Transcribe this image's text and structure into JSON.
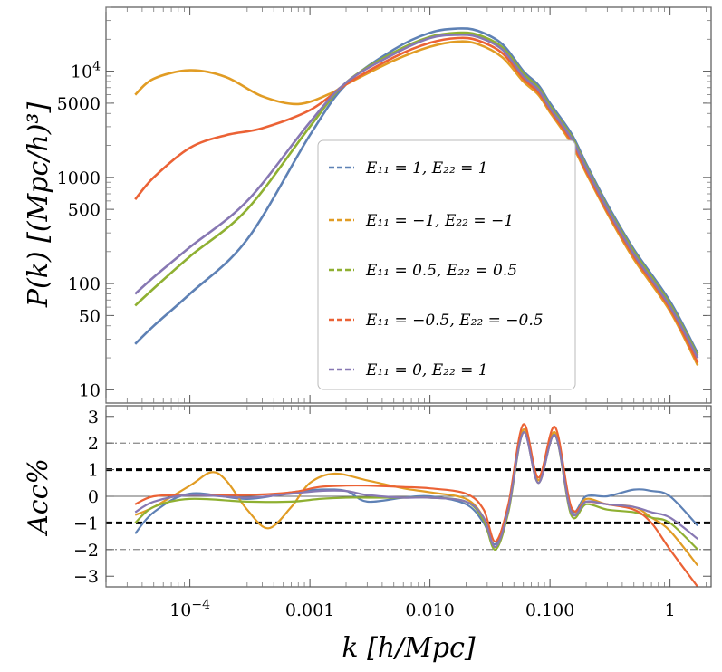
{
  "chart_data": [
    {
      "type": "line",
      "panel": "top",
      "title": "",
      "xlabel": "",
      "ylabel": "P(k) [(Mpc/h)³]",
      "xscale": "log",
      "yscale": "log",
      "xlim": [
        2e-05,
        2.2
      ],
      "ylim": [
        7.5,
        40000
      ],
      "yticks": [
        {
          "value": 10000,
          "base": "10",
          "exp": "4"
        },
        {
          "value": 5000,
          "label": "5000"
        },
        {
          "value": 1000,
          "label": "1000"
        },
        {
          "value": 500,
          "label": "500"
        },
        {
          "value": 100,
          "label": "100"
        },
        {
          "value": 50,
          "label": "50"
        },
        {
          "value": 10,
          "label": "10"
        }
      ],
      "legend_position": "center",
      "series": [
        {
          "name": "E₁₁ = 1,    E₂₂ = 1",
          "color": "#5e81b5",
          "x": [
            3.5e-05,
            5e-05,
            0.0001,
            0.0003,
            0.001,
            0.002,
            0.005,
            0.01,
            0.017,
            0.025,
            0.04,
            0.06,
            0.08,
            0.1,
            0.15,
            0.2,
            0.3,
            0.5,
            1.0,
            1.7
          ],
          "y": [
            27,
            40,
            80,
            260,
            2500,
            7500,
            16000,
            23000,
            25200,
            24000,
            18000,
            10000,
            7400,
            5000,
            2600,
            1350,
            560,
            210,
            68,
            22
          ]
        },
        {
          "name": "E₁₁ = −1,    E₂₂ = −1",
          "color": "#e19c24",
          "x": [
            3.5e-05,
            5e-05,
            0.0001,
            0.0002,
            0.0004,
            0.0008,
            0.0015,
            0.002,
            0.005,
            0.01,
            0.017,
            0.025,
            0.04,
            0.06,
            0.08,
            0.1,
            0.15,
            0.2,
            0.3,
            0.5,
            1.0,
            1.7
          ],
          "y": [
            6000,
            8500,
            10200,
            8800,
            5800,
            4900,
            6200,
            7500,
            12600,
            17000,
            19000,
            18000,
            13500,
            8000,
            6000,
            4100,
            2100,
            1100,
            460,
            170,
            55,
            17
          ]
        },
        {
          "name": "E₁₁ = 0.5,    E₂₂ = 0.5",
          "color": "#8fb032",
          "x": [
            3.5e-05,
            5e-05,
            0.0001,
            0.0003,
            0.001,
            0.002,
            0.005,
            0.01,
            0.017,
            0.025,
            0.04,
            0.06,
            0.08,
            0.1,
            0.15,
            0.2,
            0.3,
            0.5,
            1.0,
            1.7
          ],
          "y": [
            62,
            90,
            180,
            500,
            3000,
            7800,
            15000,
            21000,
            23000,
            22000,
            16800,
            9500,
            7000,
            4700,
            2450,
            1280,
            530,
            200,
            64,
            21
          ]
        },
        {
          "name": "E₁₁ = −0.5,    E₂₂ = −0.5",
          "color": "#eb6235",
          "x": [
            3.5e-05,
            5e-05,
            0.0001,
            0.0002,
            0.0004,
            0.001,
            0.002,
            0.005,
            0.01,
            0.017,
            0.025,
            0.04,
            0.06,
            0.08,
            0.1,
            0.15,
            0.2,
            0.3,
            0.5,
            1.0,
            1.7
          ],
          "y": [
            620,
            1000,
            1900,
            2500,
            2900,
            4300,
            7500,
            13500,
            18500,
            20500,
            19500,
            14800,
            8500,
            6300,
            4300,
            2200,
            1150,
            480,
            180,
            58,
            18
          ]
        },
        {
          "name": "E₁₁ = 0,    E₂₂ = 1",
          "color": "#8778b3",
          "x": [
            3.5e-05,
            5e-05,
            0.0001,
            0.0003,
            0.001,
            0.002,
            0.005,
            0.01,
            0.017,
            0.025,
            0.04,
            0.06,
            0.08,
            0.1,
            0.15,
            0.2,
            0.3,
            0.5,
            1.0,
            1.7
          ],
          "y": [
            80,
            115,
            220,
            600,
            3300,
            7800,
            14500,
            20500,
            22000,
            21000,
            16000,
            9000,
            6700,
            4500,
            2350,
            1230,
            510,
            190,
            61,
            20
          ]
        }
      ]
    },
    {
      "type": "line",
      "panel": "bottom",
      "title": "",
      "xlabel": "k [h/Mpc]",
      "ylabel": "Acc%",
      "xscale": "log",
      "xlim": [
        2e-05,
        2.2
      ],
      "ylim": [
        -3.4,
        3.4
      ],
      "yticks": [
        3,
        2,
        1,
        0,
        -1,
        -2,
        -3
      ],
      "xticks": [
        {
          "value": 0.0001,
          "base": "10",
          "exp": "−4"
        },
        {
          "value": 0.001,
          "label": "0.001"
        },
        {
          "value": 0.01,
          "label": "0.010"
        },
        {
          "value": 0.1,
          "label": "0.100"
        },
        {
          "value": 1,
          "label": "1"
        }
      ],
      "reference_lines": {
        "thick_dashed": [
          1,
          -1
        ],
        "thin_dashdot": [
          2,
          -2
        ],
        "solid": [
          0
        ]
      },
      "series": [
        {
          "color": "#5e81b5",
          "x": [
            3.5e-05,
            5e-05,
            0.0001,
            0.0003,
            0.0007,
            0.0012,
            0.002,
            0.003,
            0.006,
            0.01,
            0.02,
            0.028,
            0.035,
            0.045,
            0.06,
            0.08,
            0.11,
            0.15,
            0.2,
            0.3,
            0.5,
            0.7,
            1.0,
            1.7
          ],
          "y": [
            -1.4,
            -0.6,
            0.1,
            -0.1,
            0.15,
            0.25,
            0.2,
            -0.2,
            -0.05,
            0.0,
            -0.3,
            -1.0,
            -1.8,
            -0.5,
            2.5,
            0.6,
            2.3,
            -0.5,
            0.0,
            0.0,
            0.25,
            0.2,
            0.0,
            -1.1
          ]
        },
        {
          "color": "#e19c24",
          "x": [
            3.5e-05,
            5e-05,
            0.0001,
            0.00015,
            0.0002,
            0.0003,
            0.00045,
            0.0007,
            0.001,
            0.0016,
            0.003,
            0.006,
            0.01,
            0.02,
            0.028,
            0.035,
            0.045,
            0.06,
            0.08,
            0.11,
            0.15,
            0.2,
            0.3,
            0.5,
            0.7,
            1.0,
            1.7
          ],
          "y": [
            -0.7,
            -0.4,
            0.4,
            0.9,
            0.6,
            -0.5,
            -1.2,
            -0.4,
            0.5,
            0.85,
            0.6,
            0.3,
            0.15,
            -0.1,
            -0.8,
            -1.9,
            -0.5,
            2.5,
            0.6,
            2.4,
            -0.6,
            -0.1,
            -0.3,
            -0.4,
            -0.8,
            -1.3,
            -2.6
          ]
        },
        {
          "color": "#8fb032",
          "x": [
            3.5e-05,
            5e-05,
            0.0001,
            0.0003,
            0.0007,
            0.0012,
            0.002,
            0.003,
            0.006,
            0.01,
            0.02,
            0.028,
            0.035,
            0.045,
            0.06,
            0.08,
            0.11,
            0.15,
            0.2,
            0.3,
            0.5,
            0.7,
            1.0,
            1.7
          ],
          "y": [
            -1.0,
            -0.4,
            -0.1,
            -0.2,
            -0.2,
            -0.1,
            -0.05,
            -0.05,
            -0.05,
            -0.05,
            -0.2,
            -0.9,
            -2.0,
            -0.6,
            2.4,
            0.5,
            2.3,
            -0.7,
            -0.3,
            -0.5,
            -0.6,
            -0.8,
            -1.0,
            -2.0
          ]
        },
        {
          "color": "#eb6235",
          "x": [
            3.5e-05,
            5e-05,
            0.0001,
            0.0003,
            0.0007,
            0.0012,
            0.002,
            0.003,
            0.006,
            0.01,
            0.02,
            0.028,
            0.035,
            0.045,
            0.06,
            0.08,
            0.11,
            0.15,
            0.2,
            0.3,
            0.5,
            0.7,
            1.0,
            1.7
          ],
          "y": [
            -0.3,
            0.0,
            0.05,
            0.05,
            0.15,
            0.35,
            0.4,
            0.4,
            0.35,
            0.3,
            0.1,
            -0.5,
            -1.7,
            -0.3,
            2.7,
            0.7,
            2.6,
            -0.4,
            -0.2,
            -0.3,
            -0.5,
            -1.0,
            -2.0,
            -3.4
          ]
        },
        {
          "color": "#8778b3",
          "x": [
            3.5e-05,
            5e-05,
            0.0001,
            0.0003,
            0.0007,
            0.0012,
            0.002,
            0.003,
            0.006,
            0.01,
            0.02,
            0.028,
            0.035,
            0.045,
            0.06,
            0.08,
            0.11,
            0.15,
            0.2,
            0.3,
            0.5,
            0.7,
            1.0,
            1.7
          ],
          "y": [
            -0.6,
            -0.2,
            0.05,
            -0.05,
            0.1,
            0.2,
            0.2,
            0.05,
            -0.05,
            -0.05,
            -0.2,
            -0.8,
            -1.9,
            -0.5,
            2.4,
            0.5,
            2.3,
            -0.6,
            -0.2,
            -0.3,
            -0.4,
            -0.6,
            -0.8,
            -1.6
          ]
        }
      ]
    }
  ]
}
